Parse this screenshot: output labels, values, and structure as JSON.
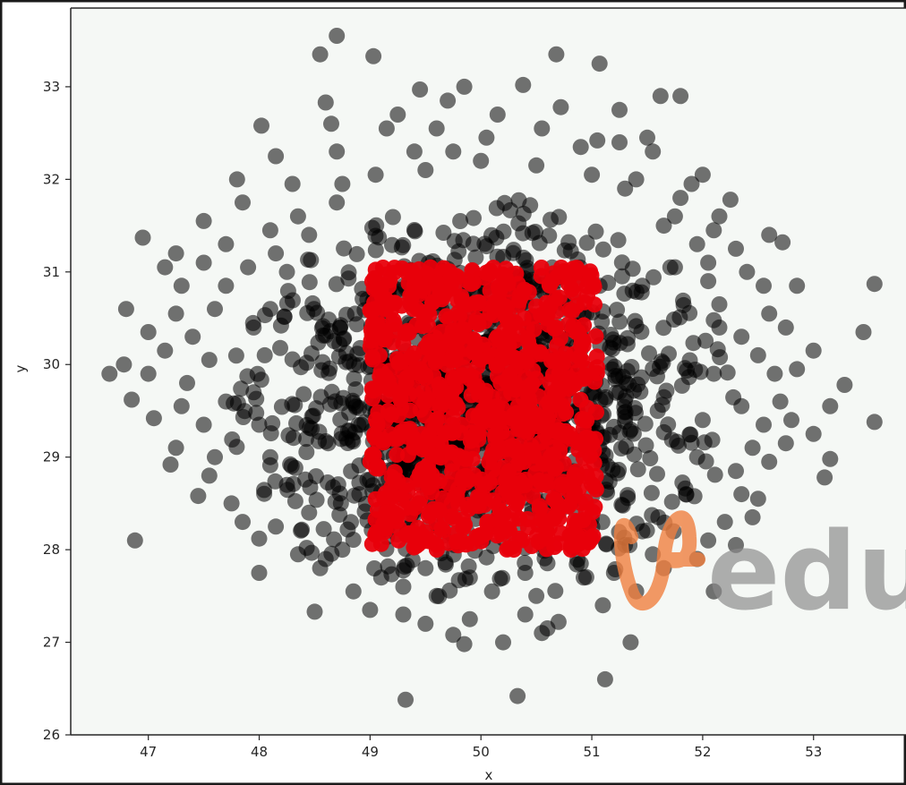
{
  "chart_data": {
    "type": "scatter",
    "title": "",
    "xlabel": "x",
    "ylabel": "y",
    "xlim": [
      46.3,
      53.85
    ],
    "ylim": [
      26.0,
      33.85
    ],
    "xticks": [
      47,
      48,
      49,
      50,
      51,
      52,
      53
    ],
    "yticks": [
      26,
      27,
      28,
      29,
      30,
      31,
      32,
      33
    ],
    "grid": false,
    "background": "#f5f8f5",
    "series": [
      {
        "color": "#000000",
        "opacity": 0.55,
        "points": [
          [
            48.7,
            33.55
          ],
          [
            48.55,
            33.35
          ],
          [
            49.03,
            33.33
          ],
          [
            50.68,
            33.35
          ],
          [
            51.07,
            33.25
          ],
          [
            49.45,
            32.97
          ],
          [
            49.85,
            33.0
          ],
          [
            50.38,
            33.02
          ],
          [
            51.62,
            32.9
          ],
          [
            51.8,
            32.9
          ],
          [
            48.6,
            32.83
          ],
          [
            49.25,
            32.7
          ],
          [
            49.7,
            32.85
          ],
          [
            50.15,
            32.7
          ],
          [
            50.72,
            32.78
          ],
          [
            51.25,
            32.75
          ],
          [
            48.02,
            32.58
          ],
          [
            48.65,
            32.6
          ],
          [
            49.15,
            32.55
          ],
          [
            49.6,
            32.55
          ],
          [
            50.05,
            32.45
          ],
          [
            50.55,
            32.55
          ],
          [
            51.05,
            32.42
          ],
          [
            51.5,
            32.45
          ],
          [
            48.15,
            32.25
          ],
          [
            48.7,
            32.3
          ],
          [
            49.4,
            32.3
          ],
          [
            49.75,
            32.3
          ],
          [
            50.9,
            32.35
          ],
          [
            51.25,
            32.4
          ],
          [
            51.55,
            32.3
          ],
          [
            52.0,
            32.05
          ],
          [
            47.8,
            32.0
          ],
          [
            48.3,
            31.95
          ],
          [
            48.75,
            31.95
          ],
          [
            51.3,
            31.9
          ],
          [
            51.9,
            31.95
          ],
          [
            52.25,
            31.78
          ],
          [
            47.85,
            31.75
          ],
          [
            48.35,
            31.6
          ],
          [
            51.75,
            31.6
          ],
          [
            52.15,
            31.6
          ],
          [
            47.5,
            31.55
          ],
          [
            48.1,
            31.45
          ],
          [
            51.65,
            31.5
          ],
          [
            52.1,
            31.45
          ],
          [
            46.95,
            31.37
          ],
          [
            47.25,
            31.2
          ],
          [
            47.7,
            31.3
          ],
          [
            48.15,
            31.2
          ],
          [
            52.3,
            31.25
          ],
          [
            52.6,
            31.4
          ],
          [
            52.72,
            31.32
          ],
          [
            47.15,
            31.05
          ],
          [
            47.5,
            31.1
          ],
          [
            47.9,
            31.05
          ],
          [
            51.75,
            31.05
          ],
          [
            52.05,
            31.1
          ],
          [
            52.4,
            31.0
          ],
          [
            47.3,
            30.85
          ],
          [
            47.7,
            30.85
          ],
          [
            52.55,
            30.85
          ],
          [
            52.85,
            30.85
          ],
          [
            53.55,
            30.87
          ],
          [
            46.8,
            30.6
          ],
          [
            47.25,
            30.55
          ],
          [
            47.6,
            30.6
          ],
          [
            52.15,
            30.65
          ],
          [
            52.6,
            30.55
          ],
          [
            47.0,
            30.35
          ],
          [
            47.4,
            30.3
          ],
          [
            47.95,
            30.4
          ],
          [
            52.35,
            30.3
          ],
          [
            52.75,
            30.4
          ],
          [
            53.45,
            30.35
          ],
          [
            47.15,
            30.15
          ],
          [
            47.55,
            30.05
          ],
          [
            52.5,
            30.1
          ],
          [
            53.0,
            30.15
          ],
          [
            46.65,
            29.9
          ],
          [
            46.78,
            30.0
          ],
          [
            47.0,
            29.9
          ],
          [
            47.35,
            29.8
          ],
          [
            52.65,
            29.9
          ],
          [
            52.85,
            29.95
          ],
          [
            46.85,
            29.62
          ],
          [
            47.3,
            29.55
          ],
          [
            47.7,
            29.6
          ],
          [
            52.35,
            29.55
          ],
          [
            52.7,
            29.6
          ],
          [
            53.28,
            29.78
          ],
          [
            53.15,
            29.55
          ],
          [
            47.05,
            29.42
          ],
          [
            47.5,
            29.35
          ],
          [
            52.55,
            29.35
          ],
          [
            52.8,
            29.4
          ],
          [
            53.55,
            29.38
          ],
          [
            47.25,
            29.1
          ],
          [
            47.6,
            29.0
          ],
          [
            52.45,
            29.1
          ],
          [
            52.75,
            29.15
          ],
          [
            53.0,
            29.25
          ],
          [
            47.2,
            28.92
          ],
          [
            47.55,
            28.8
          ],
          [
            52.3,
            28.85
          ],
          [
            52.6,
            28.95
          ],
          [
            53.15,
            28.98
          ],
          [
            47.45,
            28.58
          ],
          [
            47.75,
            28.5
          ],
          [
            52.35,
            28.6
          ],
          [
            52.5,
            28.55
          ],
          [
            53.1,
            28.78
          ],
          [
            47.85,
            28.3
          ],
          [
            48.15,
            28.25
          ],
          [
            52.2,
            28.3
          ],
          [
            52.45,
            28.35
          ],
          [
            46.88,
            28.1
          ],
          [
            48.0,
            28.12
          ],
          [
            52.05,
            28.1
          ],
          [
            52.3,
            28.05
          ],
          [
            48.35,
            27.95
          ],
          [
            48.6,
            27.9
          ],
          [
            51.55,
            27.95
          ],
          [
            51.95,
            27.9
          ],
          [
            48.0,
            27.75
          ],
          [
            48.55,
            27.8
          ],
          [
            51.2,
            27.75
          ],
          [
            51.65,
            27.8
          ],
          [
            48.85,
            27.55
          ],
          [
            49.3,
            27.6
          ],
          [
            49.6,
            27.5
          ],
          [
            50.1,
            27.55
          ],
          [
            50.5,
            27.5
          ],
          [
            51.4,
            27.55
          ],
          [
            52.1,
            27.55
          ],
          [
            48.5,
            27.33
          ],
          [
            49.0,
            27.35
          ],
          [
            49.3,
            27.3
          ],
          [
            49.9,
            27.25
          ],
          [
            50.4,
            27.3
          ],
          [
            50.7,
            27.22
          ],
          [
            51.1,
            27.4
          ],
          [
            49.5,
            27.2
          ],
          [
            49.75,
            27.08
          ],
          [
            49.85,
            26.98
          ],
          [
            50.2,
            27.0
          ],
          [
            50.6,
            27.15
          ],
          [
            51.35,
            27.0
          ],
          [
            49.32,
            26.38
          ],
          [
            50.33,
            26.42
          ],
          [
            51.12,
            26.6
          ],
          [
            50.55,
            27.1
          ],
          [
            49.1,
            27.7
          ],
          [
            48.75,
            28.0
          ],
          [
            48.45,
            28.4
          ],
          [
            48.25,
            28.7
          ],
          [
            48.1,
            29.0
          ],
          [
            48.0,
            29.35
          ],
          [
            47.95,
            29.7
          ],
          [
            48.05,
            30.1
          ],
          [
            48.1,
            30.6
          ],
          [
            48.25,
            31.0
          ],
          [
            48.45,
            31.4
          ],
          [
            48.7,
            31.75
          ],
          [
            49.05,
            32.05
          ],
          [
            49.5,
            32.1
          ],
          [
            50.0,
            32.2
          ],
          [
            50.5,
            32.15
          ],
          [
            51.0,
            32.05
          ],
          [
            51.4,
            32.0
          ],
          [
            51.8,
            31.8
          ],
          [
            51.95,
            31.3
          ],
          [
            52.05,
            30.9
          ],
          [
            52.15,
            30.4
          ],
          [
            52.1,
            29.9
          ],
          [
            52.0,
            29.4
          ],
          [
            51.95,
            29.0
          ],
          [
            51.85,
            28.6
          ],
          [
            51.6,
            28.35
          ],
          [
            51.3,
            28.05
          ],
          [
            50.9,
            27.85
          ],
          [
            50.4,
            27.75
          ],
          [
            49.9,
            27.7
          ],
          [
            49.5,
            27.8
          ]
        ]
      },
      {
        "color": "#e8000b",
        "opacity": 0.95,
        "points": []
      }
    ],
    "watermark": "edur"
  }
}
